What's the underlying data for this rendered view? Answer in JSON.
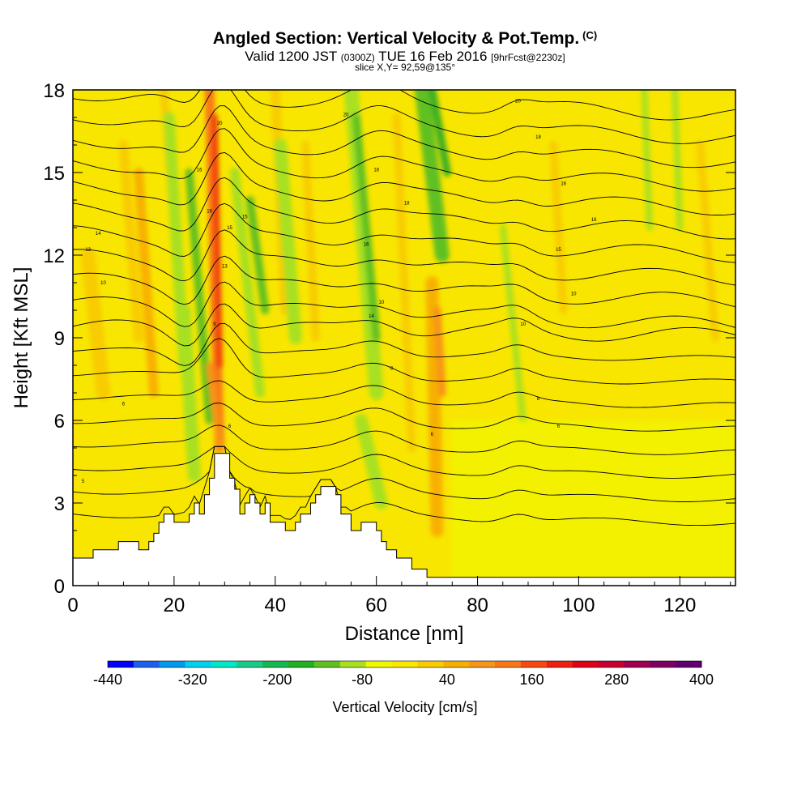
{
  "header": {
    "title": "Angled Section: Vertical Velocity & Pot.Temp.",
    "title_tag": "(C)",
    "valid_prefix": "Valid 1200 JST",
    "valid_utc": "(0300Z)",
    "valid_date": "TUE 16 Feb 2016",
    "forecast": "[9hrFcst@2230z]",
    "slice": "slice X,Y= 92,59@135°"
  },
  "colorbar": {
    "label": "Vertical Velocity [cm/s]",
    "tick_labels": [
      "-440",
      "-320",
      "-200",
      "-80",
      "40",
      "160",
      "280",
      "400"
    ],
    "colors": [
      "#0000f5",
      "#1c60f0",
      "#0099ee",
      "#00d0f0",
      "#00e8c8",
      "#18cc88",
      "#18b850",
      "#20b020",
      "#60c020",
      "#a8e020",
      "#f0f800",
      "#f8e800",
      "#f8cc00",
      "#f8b000",
      "#f89418",
      "#f87818",
      "#f84a10",
      "#f02010",
      "#e00018",
      "#c80030",
      "#a00050",
      "#800060",
      "#600070"
    ]
  },
  "chart_data": {
    "type": "heatmap",
    "title": "Angled Section: Vertical Velocity & Pot.Temp.",
    "xlabel": "Distance [nm]",
    "ylabel": "Height [Kft MSL]",
    "xlim": [
      0,
      131
    ],
    "ylim": [
      0,
      18
    ],
    "x_ticks": [
      0,
      20,
      40,
      60,
      80,
      100,
      120
    ],
    "y_ticks": [
      0,
      3,
      6,
      9,
      12,
      15,
      18
    ],
    "colorbar_range": [
      -440,
      400
    ],
    "colorbar_step": 40,
    "terrain": [
      [
        0,
        1.0
      ],
      [
        4,
        1.0
      ],
      [
        4,
        1.3
      ],
      [
        9,
        1.3
      ],
      [
        9,
        1.6
      ],
      [
        13,
        1.6
      ],
      [
        13,
        1.3
      ],
      [
        15,
        1.3
      ],
      [
        15,
        1.6
      ],
      [
        16,
        1.6
      ],
      [
        16,
        1.9
      ],
      [
        17,
        1.9
      ],
      [
        17,
        2.3
      ],
      [
        18,
        2.3
      ],
      [
        18,
        2.6
      ],
      [
        20,
        2.6
      ],
      [
        20,
        2.3
      ],
      [
        23,
        2.3
      ],
      [
        23,
        2.6
      ],
      [
        24,
        2.6
      ],
      [
        24,
        3.0
      ],
      [
        25,
        3.0
      ],
      [
        25,
        2.6
      ],
      [
        26,
        2.6
      ],
      [
        26,
        3.3
      ],
      [
        27,
        3.3
      ],
      [
        27,
        3.9
      ],
      [
        28,
        3.9
      ],
      [
        28,
        4.8
      ],
      [
        31,
        4.8
      ],
      [
        31,
        3.9
      ],
      [
        32,
        3.9
      ],
      [
        32,
        3.5
      ],
      [
        33,
        3.5
      ],
      [
        33,
        2.6
      ],
      [
        34,
        2.6
      ],
      [
        34,
        3.0
      ],
      [
        35,
        3.0
      ],
      [
        35,
        3.3
      ],
      [
        36,
        3.3
      ],
      [
        36,
        3.0
      ],
      [
        37,
        3.0
      ],
      [
        37,
        2.6
      ],
      [
        38,
        2.6
      ],
      [
        38,
        3.0
      ],
      [
        39,
        3.0
      ],
      [
        39,
        2.3
      ],
      [
        42,
        2.3
      ],
      [
        42,
        2.0
      ],
      [
        44,
        2.0
      ],
      [
        44,
        2.3
      ],
      [
        45,
        2.3
      ],
      [
        45,
        2.6
      ],
      [
        47,
        2.6
      ],
      [
        47,
        3.0
      ],
      [
        48,
        3.0
      ],
      [
        48,
        3.3
      ],
      [
        49,
        3.3
      ],
      [
        49,
        3.6
      ],
      [
        52,
        3.6
      ],
      [
        52,
        3.3
      ],
      [
        53,
        3.3
      ],
      [
        53,
        2.6
      ],
      [
        55,
        2.6
      ],
      [
        55,
        2.0
      ],
      [
        57,
        2.0
      ],
      [
        57,
        2.3
      ],
      [
        60,
        2.3
      ],
      [
        60,
        2.0
      ],
      [
        61,
        2.0
      ],
      [
        61,
        1.6
      ],
      [
        62,
        1.6
      ],
      [
        62,
        1.3
      ],
      [
        64,
        1.3
      ],
      [
        64,
        1.0
      ],
      [
        67,
        1.0
      ],
      [
        67,
        0.6
      ],
      [
        70,
        0.6
      ],
      [
        70,
        0.3
      ],
      [
        131,
        0.3
      ]
    ],
    "contour_labels": [
      {
        "x": 2,
        "y": 3.8,
        "text": "5"
      },
      {
        "x": 10,
        "y": 6.6,
        "text": "6"
      },
      {
        "x": 6,
        "y": 11.0,
        "text": "10"
      },
      {
        "x": 3,
        "y": 12.2,
        "text": "13"
      },
      {
        "x": 5,
        "y": 12.8,
        "text": "14"
      },
      {
        "x": 28,
        "y": 9.5,
        "text": "9"
      },
      {
        "x": 31,
        "y": 5.8,
        "text": "6"
      },
      {
        "x": 30,
        "y": 11.6,
        "text": "13"
      },
      {
        "x": 31,
        "y": 13.0,
        "text": "15"
      },
      {
        "x": 34,
        "y": 13.4,
        "text": "15"
      },
      {
        "x": 27,
        "y": 13.6,
        "text": "16"
      },
      {
        "x": 25,
        "y": 15.1,
        "text": "16"
      },
      {
        "x": 29,
        "y": 16.8,
        "text": "20"
      },
      {
        "x": 54,
        "y": 17.1,
        "text": "20"
      },
      {
        "x": 60,
        "y": 15.1,
        "text": "18"
      },
      {
        "x": 66,
        "y": 13.9,
        "text": "18"
      },
      {
        "x": 58,
        "y": 12.4,
        "text": "16"
      },
      {
        "x": 59,
        "y": 9.8,
        "text": "14"
      },
      {
        "x": 61,
        "y": 10.3,
        "text": "10"
      },
      {
        "x": 63,
        "y": 7.9,
        "text": "8"
      },
      {
        "x": 71,
        "y": 5.5,
        "text": "6"
      },
      {
        "x": 88,
        "y": 17.6,
        "text": "20"
      },
      {
        "x": 92,
        "y": 16.3,
        "text": "18"
      },
      {
        "x": 97,
        "y": 14.6,
        "text": "16"
      },
      {
        "x": 103,
        "y": 13.3,
        "text": "16"
      },
      {
        "x": 96,
        "y": 12.2,
        "text": "15"
      },
      {
        "x": 99,
        "y": 10.6,
        "text": "10"
      },
      {
        "x": 89,
        "y": 9.5,
        "text": "10"
      },
      {
        "x": 92,
        "y": 6.8,
        "text": "8"
      },
      {
        "x": 96,
        "y": 5.8,
        "text": "6"
      }
    ]
  }
}
